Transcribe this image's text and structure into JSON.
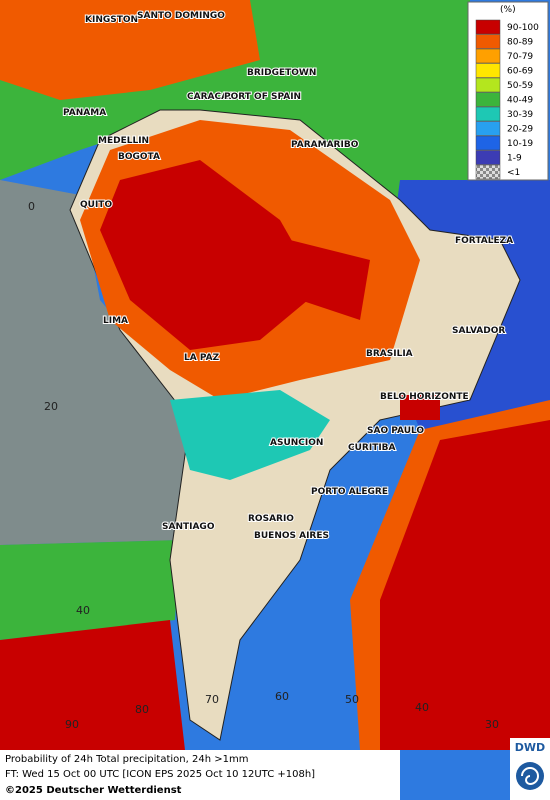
{
  "cities": [
    "KINGSTON",
    "SANTO DOMINGO",
    "BRIDGETOWN",
    "CARACAS",
    "PORT OF SPAIN",
    "PANAMA",
    "MEDELLIN",
    "BOGOTA",
    "PARAMARIBO",
    "QUITO",
    "FORTALEZA",
    "LIMA",
    "SALVADOR",
    "BRASILIA",
    "LA PAZ",
    "BELO HORIZONTE",
    "SAO PAULO",
    "ASUNCION",
    "CURITIBA",
    "PORTO ALEGRE",
    "ROSARIO",
    "SANTIAGO",
    "BUENOS AIRES"
  ],
  "latitude_labels": [
    "0",
    "20",
    "40"
  ],
  "longitude_labels": [
    "90",
    "80",
    "70",
    "60",
    "50",
    "40",
    "30"
  ],
  "legend": {
    "title": "(%)",
    "items": [
      {
        "label": "90-100",
        "color": "#c80000"
      },
      {
        "label": "80-89",
        "color": "#f05a00"
      },
      {
        "label": "70-79",
        "color": "#ffa000"
      },
      {
        "label": "60-69",
        "color": "#ffe600"
      },
      {
        "label": "50-59",
        "color": "#b4e61e"
      },
      {
        "label": "40-49",
        "color": "#3cb43c"
      },
      {
        "label": "30-39",
        "color": "#1ec8b4"
      },
      {
        "label": "20-29",
        "color": "#28a0f0"
      },
      {
        "label": "10-19",
        "color": "#1e64e6"
      },
      {
        "label": "1-9",
        "color": "#3c3cb4"
      },
      {
        "label": "<1",
        "color": "#a0a0a0"
      }
    ]
  },
  "footer": {
    "line1": "Probability of 24h Total precipitation, 24h >1mm",
    "line2": "FT: Wed 15 Oct 00 UTC [ICON EPS 2025 Oct 10 12UTC +108h]",
    "copyright": "©2025 Deutscher Wetterdienst"
  },
  "logo": "DWD"
}
